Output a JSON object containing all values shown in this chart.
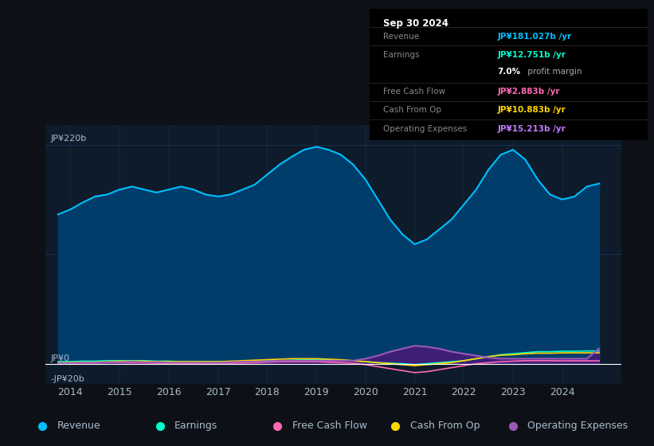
{
  "background_color": "#0d1117",
  "plot_bg_color": "#0d1b2a",
  "title_box": {
    "date": "Sep 30 2024",
    "rows": [
      {
        "label": "Revenue",
        "value": "JP¥181.027b /yr",
        "value_color": "#00bfff"
      },
      {
        "label": "Earnings",
        "value": "JP¥12.751b /yr",
        "value_color": "#00ffcc"
      },
      {
        "label": "",
        "value": "7.0% profit margin",
        "value_color": "#ffffff"
      },
      {
        "label": "Free Cash Flow",
        "value": "JP¥2.883b /yr",
        "value_color": "#ff69b4"
      },
      {
        "label": "Cash From Op",
        "value": "JP¥10.883b /yr",
        "value_color": "#ffd700"
      },
      {
        "label": "Operating Expenses",
        "value": "JP¥15.213b /yr",
        "value_color": "#bf7fff"
      }
    ]
  },
  "ylim": [
    -20,
    240
  ],
  "xlim": [
    2013.5,
    2025.2
  ],
  "xticks": [
    2014,
    2015,
    2016,
    2017,
    2018,
    2019,
    2020,
    2021,
    2022,
    2023,
    2024
  ],
  "years": [
    2013.75,
    2014.0,
    2014.25,
    2014.5,
    2014.75,
    2015.0,
    2015.25,
    2015.5,
    2015.75,
    2016.0,
    2016.25,
    2016.5,
    2016.75,
    2017.0,
    2017.25,
    2017.5,
    2017.75,
    2018.0,
    2018.25,
    2018.5,
    2018.75,
    2019.0,
    2019.25,
    2019.5,
    2019.75,
    2020.0,
    2020.25,
    2020.5,
    2020.75,
    2021.0,
    2021.25,
    2021.5,
    2021.75,
    2022.0,
    2022.25,
    2022.5,
    2022.75,
    2023.0,
    2023.25,
    2023.5,
    2023.75,
    2024.0,
    2024.25,
    2024.5,
    2024.75
  ],
  "revenue": [
    150,
    155,
    162,
    168,
    170,
    175,
    178,
    175,
    172,
    175,
    178,
    175,
    170,
    168,
    170,
    175,
    180,
    190,
    200,
    208,
    215,
    218,
    215,
    210,
    200,
    185,
    165,
    145,
    130,
    120,
    125,
    135,
    145,
    160,
    175,
    195,
    210,
    215,
    205,
    185,
    170,
    165,
    168,
    178,
    181
  ],
  "earnings": [
    2,
    2,
    2.5,
    2.5,
    3,
    3,
    3,
    3,
    2.5,
    2.5,
    2,
    2,
    2,
    2,
    2,
    2,
    2.5,
    3,
    3,
    3.5,
    4,
    4.5,
    4,
    3.5,
    3,
    2,
    1,
    0.5,
    0,
    -1,
    0,
    1,
    2,
    3,
    5,
    7,
    9,
    10,
    11,
    12,
    12,
    12.5,
    12.5,
    12.75,
    12.751
  ],
  "free_cash_flow": [
    0.5,
    0.5,
    0.8,
    0.8,
    1,
    1,
    1,
    0.8,
    0.5,
    0.3,
    0.3,
    0.3,
    0.5,
    0.5,
    0.5,
    0.8,
    1,
    1.5,
    2,
    2,
    2,
    2,
    1.5,
    1,
    0.5,
    -1,
    -3,
    -5,
    -7,
    -9,
    -8,
    -6,
    -4,
    -2,
    0,
    1,
    2,
    2.5,
    3,
    3,
    3,
    2.8,
    2.9,
    2.85,
    2.883
  ],
  "cash_from_op": [
    1,
    1,
    1.5,
    1.5,
    2,
    2.5,
    2.5,
    2.5,
    2,
    2,
    2,
    2,
    2,
    2,
    2.5,
    3,
    3.5,
    4,
    4.5,
    5,
    5,
    5,
    4.5,
    4,
    3,
    2,
    1,
    0,
    -1,
    -2,
    -1,
    0,
    1,
    3,
    5,
    7,
    8.5,
    9,
    10,
    10.5,
    10.5,
    10.8,
    10.9,
    10.85,
    10.883
  ],
  "operating_expenses": [
    0.5,
    0.5,
    1,
    1,
    1.5,
    1.5,
    2,
    1.5,
    1.5,
    1,
    1,
    1,
    1,
    1,
    1.5,
    2,
    2,
    2.5,
    3,
    3,
    3,
    3,
    3,
    3,
    3,
    5,
    8,
    12,
    15,
    18,
    17,
    15,
    12,
    10,
    8,
    6,
    5,
    5,
    5,
    5,
    5,
    5,
    5,
    5,
    15.213
  ],
  "revenue_color": "#00bfff",
  "revenue_fill_color": "#003d6b",
  "earnings_color": "#00ffcc",
  "free_cash_flow_color": "#ff69b4",
  "cash_from_op_color": "#ffd700",
  "operating_expenses_color": "#9b59b6",
  "operating_expenses_fill_color": "#4a1a7a",
  "grid_color": "#1e3a5f",
  "text_color": "#aabbcc",
  "zero_line_color": "#ffffff",
  "legend_items": [
    {
      "label": "Revenue",
      "color": "#00bfff"
    },
    {
      "label": "Earnings",
      "color": "#00ffcc"
    },
    {
      "label": "Free Cash Flow",
      "color": "#ff69b4"
    },
    {
      "label": "Cash From Op",
      "color": "#ffd700"
    },
    {
      "label": "Operating Expenses",
      "color": "#9b59b6"
    }
  ]
}
